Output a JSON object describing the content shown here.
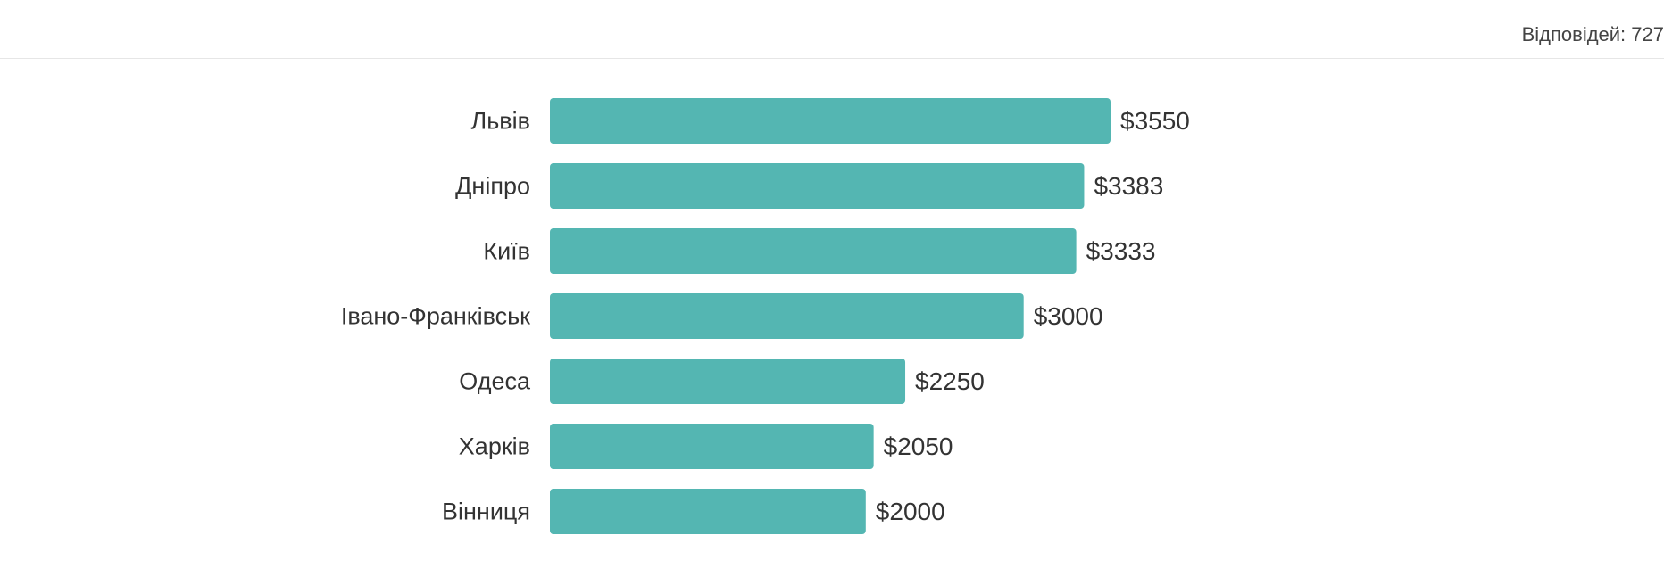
{
  "header": {
    "responses_text": "Відповідей: 727"
  },
  "colors": {
    "bar": "#54b6b2",
    "text": "#333333"
  },
  "chart_data": {
    "type": "bar",
    "orientation": "horizontal",
    "categories": [
      "Львів",
      "Дніпро",
      "Київ",
      "Івано-Франківськ",
      "Одеса",
      "Харків",
      "Вінниця"
    ],
    "values": [
      3550,
      3383,
      3333,
      3000,
      2250,
      2050,
      2000
    ],
    "value_labels": [
      "$3550",
      "$3383",
      "$3333",
      "$3000",
      "$2250",
      "$2050",
      "$2000"
    ],
    "value_prefix": "$",
    "xlim": [
      0,
      3550
    ],
    "grid": false,
    "legend": false
  }
}
